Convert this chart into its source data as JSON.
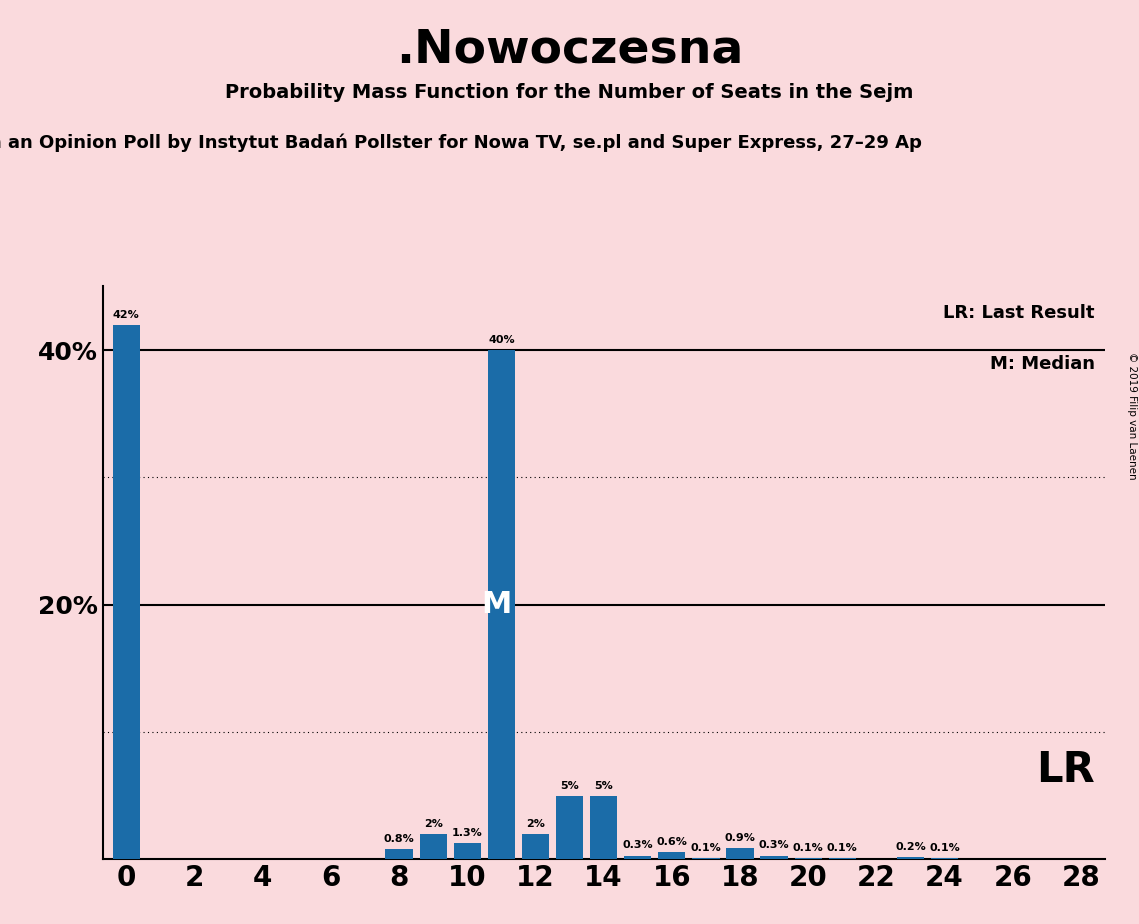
{
  "title": ".Nowoczesna",
  "subtitle": "Probability Mass Function for the Number of Seats in the Sejm",
  "subtitle2": "n an Opinion Poll by Instytut Badań Pollster for Nowa TV, se.pl and Super Express, 27–29 Ap",
  "copyright": "© 2019 Filip van Laenen",
  "bar_color": "#1b6ca8",
  "background_color": "#fadadd",
  "seats": [
    0,
    1,
    2,
    3,
    4,
    5,
    6,
    7,
    8,
    9,
    10,
    11,
    12,
    13,
    14,
    15,
    16,
    17,
    18,
    19,
    20,
    21,
    22,
    23,
    24,
    25,
    26,
    27,
    28
  ],
  "probabilities": [
    42,
    0,
    0,
    0,
    0,
    0,
    0,
    0,
    0.8,
    2,
    1.3,
    40,
    2,
    5,
    5,
    0.3,
    0.6,
    0.1,
    0.9,
    0.3,
    0.1,
    0.1,
    0,
    0.2,
    0.1,
    0,
    0,
    0,
    0
  ],
  "median_seat": 11,
  "xlim": [
    -0.7,
    28.7
  ],
  "ylim": [
    0,
    45
  ],
  "yticks": [
    0,
    10,
    20,
    30,
    40
  ],
  "ytick_labels": [
    "",
    "",
    "20%",
    "",
    "40%"
  ],
  "xticks": [
    0,
    2,
    4,
    6,
    8,
    10,
    12,
    14,
    16,
    18,
    20,
    22,
    24,
    26,
    28
  ],
  "legend_lr": "LR: Last Result",
  "legend_m": "M: Median",
  "lr_label": "LR"
}
